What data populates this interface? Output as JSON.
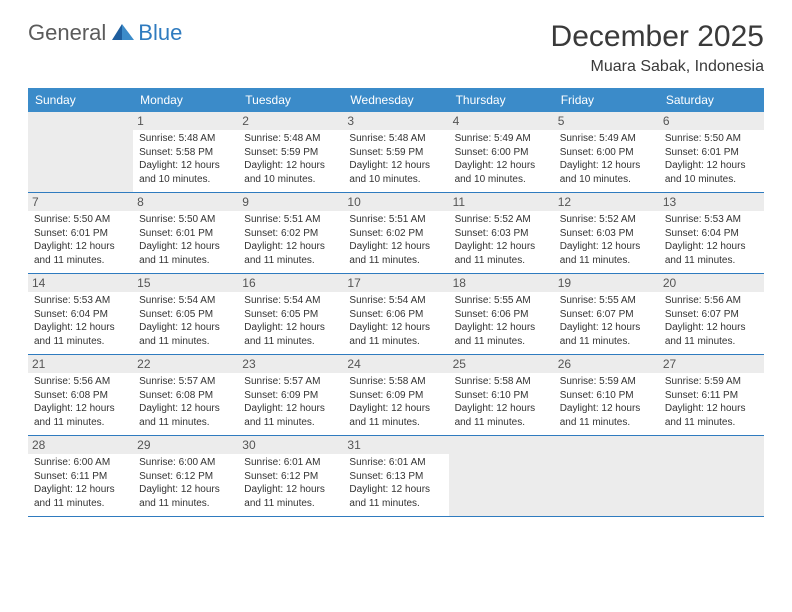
{
  "logo": {
    "general": "General",
    "blue": "Blue"
  },
  "title": "December 2025",
  "location": "Muara Sabak, Indonesia",
  "header_bg": "#3b8bc9",
  "day_bg": "#ececec",
  "rule_color": "#2f7bbf",
  "text_color": "#333333",
  "weekdays": [
    "Sunday",
    "Monday",
    "Tuesday",
    "Wednesday",
    "Thursday",
    "Friday",
    "Saturday"
  ],
  "leading_blanks": 1,
  "trailing_blanks": 3,
  "cell_fontsize": 10,
  "days": [
    {
      "n": "1",
      "sunrise": "Sunrise: 5:48 AM",
      "sunset": "Sunset: 5:58 PM",
      "daylight1": "Daylight: 12 hours",
      "daylight2": "and 10 minutes."
    },
    {
      "n": "2",
      "sunrise": "Sunrise: 5:48 AM",
      "sunset": "Sunset: 5:59 PM",
      "daylight1": "Daylight: 12 hours",
      "daylight2": "and 10 minutes."
    },
    {
      "n": "3",
      "sunrise": "Sunrise: 5:48 AM",
      "sunset": "Sunset: 5:59 PM",
      "daylight1": "Daylight: 12 hours",
      "daylight2": "and 10 minutes."
    },
    {
      "n": "4",
      "sunrise": "Sunrise: 5:49 AM",
      "sunset": "Sunset: 6:00 PM",
      "daylight1": "Daylight: 12 hours",
      "daylight2": "and 10 minutes."
    },
    {
      "n": "5",
      "sunrise": "Sunrise: 5:49 AM",
      "sunset": "Sunset: 6:00 PM",
      "daylight1": "Daylight: 12 hours",
      "daylight2": "and 10 minutes."
    },
    {
      "n": "6",
      "sunrise": "Sunrise: 5:50 AM",
      "sunset": "Sunset: 6:01 PM",
      "daylight1": "Daylight: 12 hours",
      "daylight2": "and 10 minutes."
    },
    {
      "n": "7",
      "sunrise": "Sunrise: 5:50 AM",
      "sunset": "Sunset: 6:01 PM",
      "daylight1": "Daylight: 12 hours",
      "daylight2": "and 11 minutes."
    },
    {
      "n": "8",
      "sunrise": "Sunrise: 5:50 AM",
      "sunset": "Sunset: 6:01 PM",
      "daylight1": "Daylight: 12 hours",
      "daylight2": "and 11 minutes."
    },
    {
      "n": "9",
      "sunrise": "Sunrise: 5:51 AM",
      "sunset": "Sunset: 6:02 PM",
      "daylight1": "Daylight: 12 hours",
      "daylight2": "and 11 minutes."
    },
    {
      "n": "10",
      "sunrise": "Sunrise: 5:51 AM",
      "sunset": "Sunset: 6:02 PM",
      "daylight1": "Daylight: 12 hours",
      "daylight2": "and 11 minutes."
    },
    {
      "n": "11",
      "sunrise": "Sunrise: 5:52 AM",
      "sunset": "Sunset: 6:03 PM",
      "daylight1": "Daylight: 12 hours",
      "daylight2": "and 11 minutes."
    },
    {
      "n": "12",
      "sunrise": "Sunrise: 5:52 AM",
      "sunset": "Sunset: 6:03 PM",
      "daylight1": "Daylight: 12 hours",
      "daylight2": "and 11 minutes."
    },
    {
      "n": "13",
      "sunrise": "Sunrise: 5:53 AM",
      "sunset": "Sunset: 6:04 PM",
      "daylight1": "Daylight: 12 hours",
      "daylight2": "and 11 minutes."
    },
    {
      "n": "14",
      "sunrise": "Sunrise: 5:53 AM",
      "sunset": "Sunset: 6:04 PM",
      "daylight1": "Daylight: 12 hours",
      "daylight2": "and 11 minutes."
    },
    {
      "n": "15",
      "sunrise": "Sunrise: 5:54 AM",
      "sunset": "Sunset: 6:05 PM",
      "daylight1": "Daylight: 12 hours",
      "daylight2": "and 11 minutes."
    },
    {
      "n": "16",
      "sunrise": "Sunrise: 5:54 AM",
      "sunset": "Sunset: 6:05 PM",
      "daylight1": "Daylight: 12 hours",
      "daylight2": "and 11 minutes."
    },
    {
      "n": "17",
      "sunrise": "Sunrise: 5:54 AM",
      "sunset": "Sunset: 6:06 PM",
      "daylight1": "Daylight: 12 hours",
      "daylight2": "and 11 minutes."
    },
    {
      "n": "18",
      "sunrise": "Sunrise: 5:55 AM",
      "sunset": "Sunset: 6:06 PM",
      "daylight1": "Daylight: 12 hours",
      "daylight2": "and 11 minutes."
    },
    {
      "n": "19",
      "sunrise": "Sunrise: 5:55 AM",
      "sunset": "Sunset: 6:07 PM",
      "daylight1": "Daylight: 12 hours",
      "daylight2": "and 11 minutes."
    },
    {
      "n": "20",
      "sunrise": "Sunrise: 5:56 AM",
      "sunset": "Sunset: 6:07 PM",
      "daylight1": "Daylight: 12 hours",
      "daylight2": "and 11 minutes."
    },
    {
      "n": "21",
      "sunrise": "Sunrise: 5:56 AM",
      "sunset": "Sunset: 6:08 PM",
      "daylight1": "Daylight: 12 hours",
      "daylight2": "and 11 minutes."
    },
    {
      "n": "22",
      "sunrise": "Sunrise: 5:57 AM",
      "sunset": "Sunset: 6:08 PM",
      "daylight1": "Daylight: 12 hours",
      "daylight2": "and 11 minutes."
    },
    {
      "n": "23",
      "sunrise": "Sunrise: 5:57 AM",
      "sunset": "Sunset: 6:09 PM",
      "daylight1": "Daylight: 12 hours",
      "daylight2": "and 11 minutes."
    },
    {
      "n": "24",
      "sunrise": "Sunrise: 5:58 AM",
      "sunset": "Sunset: 6:09 PM",
      "daylight1": "Daylight: 12 hours",
      "daylight2": "and 11 minutes."
    },
    {
      "n": "25",
      "sunrise": "Sunrise: 5:58 AM",
      "sunset": "Sunset: 6:10 PM",
      "daylight1": "Daylight: 12 hours",
      "daylight2": "and 11 minutes."
    },
    {
      "n": "26",
      "sunrise": "Sunrise: 5:59 AM",
      "sunset": "Sunset: 6:10 PM",
      "daylight1": "Daylight: 12 hours",
      "daylight2": "and 11 minutes."
    },
    {
      "n": "27",
      "sunrise": "Sunrise: 5:59 AM",
      "sunset": "Sunset: 6:11 PM",
      "daylight1": "Daylight: 12 hours",
      "daylight2": "and 11 minutes."
    },
    {
      "n": "28",
      "sunrise": "Sunrise: 6:00 AM",
      "sunset": "Sunset: 6:11 PM",
      "daylight1": "Daylight: 12 hours",
      "daylight2": "and 11 minutes."
    },
    {
      "n": "29",
      "sunrise": "Sunrise: 6:00 AM",
      "sunset": "Sunset: 6:12 PM",
      "daylight1": "Daylight: 12 hours",
      "daylight2": "and 11 minutes."
    },
    {
      "n": "30",
      "sunrise": "Sunrise: 6:01 AM",
      "sunset": "Sunset: 6:12 PM",
      "daylight1": "Daylight: 12 hours",
      "daylight2": "and 11 minutes."
    },
    {
      "n": "31",
      "sunrise": "Sunrise: 6:01 AM",
      "sunset": "Sunset: 6:13 PM",
      "daylight1": "Daylight: 12 hours",
      "daylight2": "and 11 minutes."
    }
  ]
}
